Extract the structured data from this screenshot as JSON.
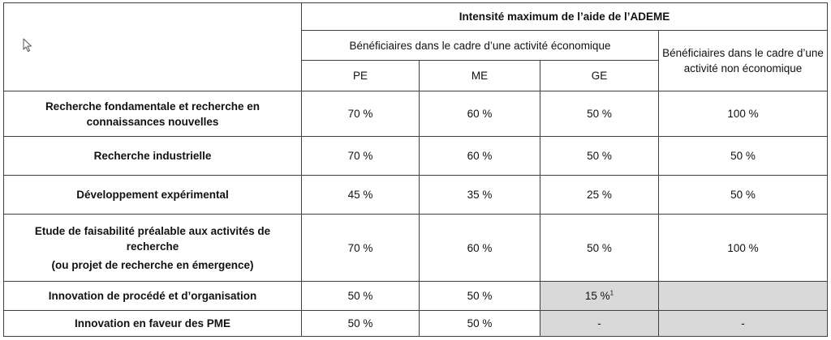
{
  "table": {
    "title": "Intensité maximum de l’aide de l’ADEME",
    "eco_header": "Bénéficiaires dans le cadre d’une activité économique",
    "noneco_header": "Bénéficiaires dans le cadre d’une activité non économique",
    "size_headers": [
      "PE",
      "ME",
      "GE"
    ],
    "rows": [
      {
        "label": "Recherche fondamentale et recherche en connaissances nouvelles",
        "pe": "70 %",
        "me": "60 %",
        "ge": "50 %",
        "noneco": "100 %"
      },
      {
        "label": "Recherche industrielle",
        "pe": "70 %",
        "me": "60 %",
        "ge": "50 %",
        "noneco": "50 %"
      },
      {
        "label": "Développement expérimental",
        "pe": "45 %",
        "me": "35 %",
        "ge": "25 %",
        "noneco": "50 %"
      },
      {
        "label_line1": "Etude de faisabilité préalable aux activités de recherche",
        "label_line2": "(ou projet de recherche en émergence)",
        "pe": "70 %",
        "me": "60 %",
        "ge": "50 %",
        "noneco": "100 %"
      },
      {
        "label": "Innovation de procédé et d’organisation",
        "pe": "50 %",
        "me": "50 %",
        "ge": "15 %",
        "ge_sup": "1",
        "noneco": ""
      },
      {
        "label": "Innovation en faveur des PME",
        "pe": "50 %",
        "me": "50 %",
        "ge": "-",
        "noneco": "-"
      }
    ]
  }
}
